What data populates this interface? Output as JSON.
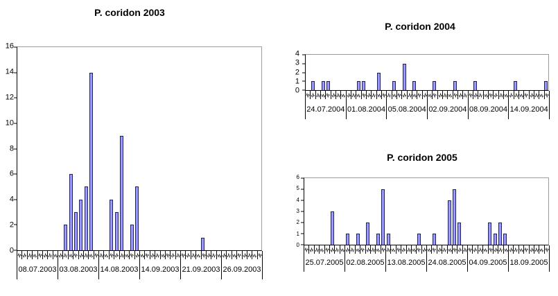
{
  "page": {
    "background": "#ffffff"
  },
  "chart_data": [
    {
      "type": "bar",
      "title": "P. coridon 2003",
      "ylim": [
        0,
        16
      ],
      "yticks": [
        0,
        2,
        4,
        6,
        8,
        10,
        12,
        14,
        16
      ],
      "xlabel": "",
      "ylabel": "",
      "grid": "off",
      "legend": "none",
      "x_minor_tick_count": 48,
      "slots_per_group": 8,
      "group_labels": [
        "08.07.2003",
        "03.08.2003",
        "14.08.2003",
        "14.09.2003",
        "21.09.2003",
        "26.09.2003"
      ],
      "values": [
        0,
        0,
        0,
        0,
        0,
        0,
        0,
        0,
        0,
        2,
        6,
        3,
        4,
        5,
        14,
        0,
        0,
        0,
        4,
        3,
        9,
        0,
        2,
        5,
        0,
        0,
        0,
        0,
        0,
        0,
        0,
        0,
        0,
        0,
        0,
        0,
        1,
        0,
        0,
        0,
        0,
        0,
        0,
        0,
        0,
        0,
        0,
        0
      ],
      "bar_fill": "#9999FF",
      "bar_border": "#202060",
      "axis_color": "#000000",
      "frame_color": "#9c9c9c"
    },
    {
      "type": "bar",
      "title": "P. coridon 2004",
      "ylim": [
        0,
        4
      ],
      "yticks": [
        0,
        1,
        2,
        3,
        4
      ],
      "xlabel": "",
      "ylabel": "",
      "grid": "off",
      "legend": "none",
      "x_minor_tick_count": 48,
      "slots_per_group": 8,
      "group_labels": [
        "24.07.2004",
        "01.08.2004",
        "05.08.2004",
        "02.09.2004",
        "08.09.2004",
        "14.09.2004"
      ],
      "values": [
        0,
        1,
        0,
        1,
        1,
        0,
        0,
        0,
        0,
        0,
        1,
        1,
        0,
        0,
        2,
        0,
        0,
        1,
        0,
        3,
        0,
        1,
        0,
        0,
        0,
        1,
        0,
        0,
        0,
        1,
        0,
        0,
        0,
        1,
        0,
        0,
        0,
        0,
        0,
        0,
        0,
        1,
        0,
        0,
        0,
        0,
        0,
        1
      ],
      "bar_fill": "#9999FF",
      "bar_border": "#202060",
      "axis_color": "#000000",
      "frame_color": "#9c9c9c"
    },
    {
      "type": "bar",
      "title": "P. coridon 2005",
      "ylim": [
        0,
        6
      ],
      "yticks": [
        0,
        1,
        2,
        3,
        4,
        5,
        6
      ],
      "xlabel": "",
      "ylabel": "",
      "grid": "off",
      "legend": "none",
      "x_minor_tick_count": 48,
      "slots_per_group": 8,
      "group_labels": [
        "25.07.2005",
        "02.08.2005",
        "13.08.2005",
        "24.08.2005",
        "04.09.2005",
        "18.09.2005"
      ],
      "values": [
        0,
        0,
        0,
        0,
        0,
        3,
        0,
        0,
        1,
        0,
        1,
        0,
        2,
        0,
        1,
        5,
        1,
        0,
        0,
        0,
        0,
        0,
        1,
        0,
        0,
        1,
        0,
        0,
        4,
        5,
        2,
        0,
        0,
        0,
        0,
        0,
        2,
        1,
        2,
        1,
        0,
        0,
        0,
        0,
        0,
        0,
        0,
        0
      ],
      "bar_fill": "#9999FF",
      "bar_border": "#202060",
      "axis_color": "#000000",
      "frame_color": "#9c9c9c"
    }
  ]
}
